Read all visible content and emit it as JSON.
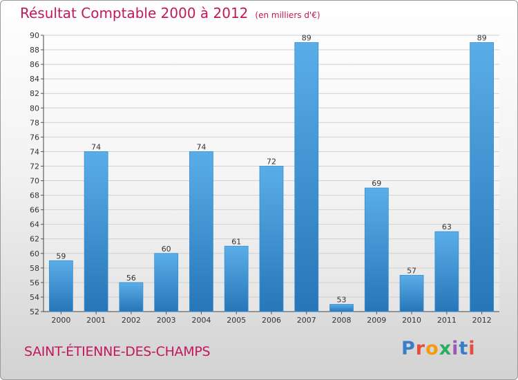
{
  "title": "Résultat Comptable 2000 à 2012",
  "unit": "(en milliers d'€)",
  "commune": "SAINT-ÉTIENNE-DES-CHAMPS",
  "brand": {
    "text": "Proxiti",
    "colors": [
      "#3a7dc9",
      "#e74c3c",
      "#f39c12",
      "#27ae60",
      "#9b59b6",
      "#3a7dc9",
      "#e74c3c"
    ]
  },
  "colors": {
    "bar_light": "#5aaee8",
    "bar_dark": "#2776b8",
    "title": "#c2185b",
    "grid": "#d0d0d0"
  },
  "chart_data": {
    "type": "bar",
    "title": "Résultat Comptable 2000 à 2012",
    "subtitle": "(en milliers d'€)",
    "categories": [
      "2000",
      "2001",
      "2002",
      "2003",
      "2004",
      "2005",
      "2006",
      "2007",
      "2008",
      "2009",
      "2010",
      "2011",
      "2012"
    ],
    "values": [
      59,
      74,
      56,
      60,
      74,
      61,
      72,
      89,
      53,
      69,
      57,
      63,
      89
    ],
    "ylim": [
      52,
      90
    ],
    "yticks": [
      52,
      54,
      56,
      58,
      60,
      62,
      64,
      66,
      68,
      70,
      72,
      74,
      76,
      78,
      80,
      82,
      84,
      86,
      88,
      90
    ],
    "xlabel": "",
    "ylabel": "",
    "grid": true
  }
}
